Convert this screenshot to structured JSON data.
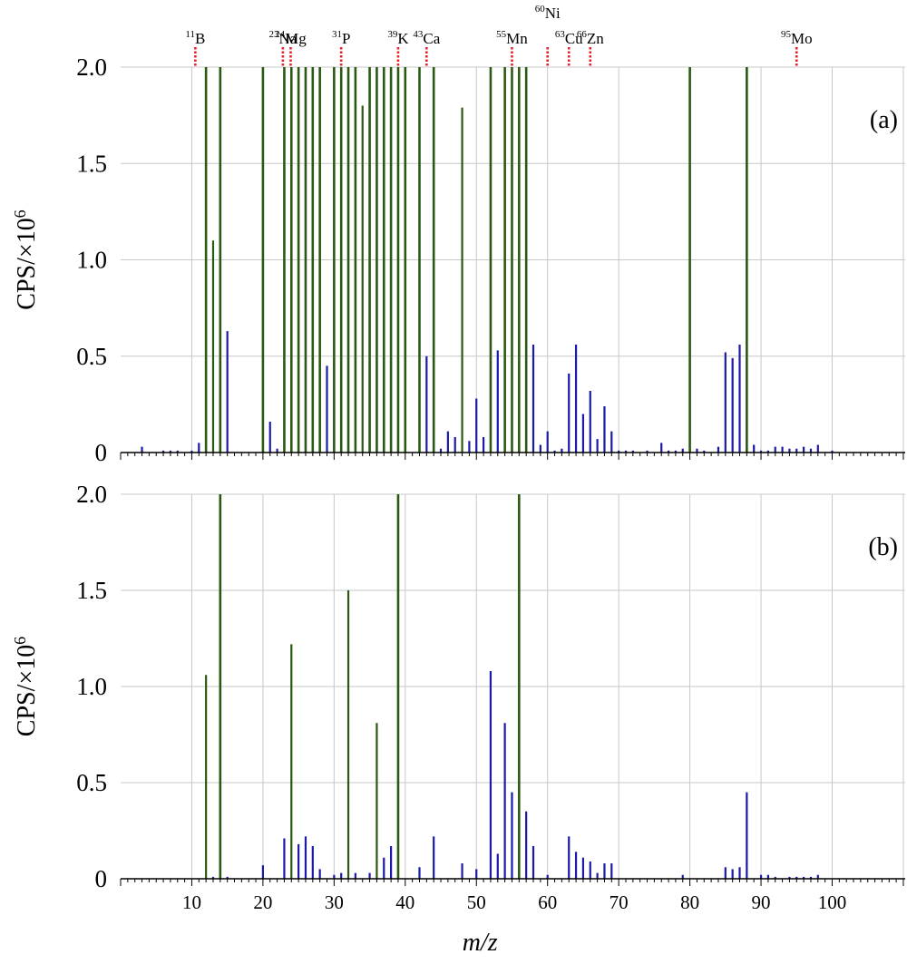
{
  "chart_data": [
    {
      "type": "bar",
      "panel_label": "(a)",
      "ylabel": "CPS/×10",
      "ylabel_sup": "6",
      "xlabel": "",
      "xlim": [
        0,
        110
      ],
      "ylim": [
        0,
        2.0
      ],
      "yticks": [
        "0",
        "0.5",
        "1.0",
        "1.5",
        "2.0"
      ],
      "grid": true,
      "element_markers": [
        {
          "mass": "11",
          "symbol": "B",
          "x": 10.5
        },
        {
          "mass": "23",
          "symbol": "Na",
          "x": 22.8
        },
        {
          "mass": "24",
          "symbol": "Mg",
          "x": 23.9
        },
        {
          "mass": "31",
          "symbol": "P",
          "x": 31.0
        },
        {
          "mass": "39",
          "symbol": "K",
          "x": 39.0
        },
        {
          "mass": "43",
          "symbol": "Ca",
          "x": 43.0
        },
        {
          "mass": "55",
          "symbol": "Mn",
          "x": 55.0
        },
        {
          "mass": "60",
          "symbol": "Ni",
          "x": 60.0
        },
        {
          "mass": "63",
          "symbol": "Cu",
          "x": 63.0
        },
        {
          "mass": "66",
          "symbol": "Zn",
          "x": 66.0
        },
        {
          "mass": "95",
          "symbol": "Mo",
          "x": 95.0
        }
      ],
      "series": [
        {
          "color": "#2a5a12",
          "points": [
            [
              12,
              2.0
            ],
            [
              13,
              1.1
            ],
            [
              14,
              2.0
            ],
            [
              20,
              2.0
            ],
            [
              23,
              2.0
            ],
            [
              24,
              2.0
            ],
            [
              25,
              2.0
            ],
            [
              26,
              2.0
            ],
            [
              27,
              2.0
            ],
            [
              28,
              2.0
            ],
            [
              30,
              2.0
            ],
            [
              31,
              2.0
            ],
            [
              32,
              2.0
            ],
            [
              33,
              2.0
            ],
            [
              34,
              1.8
            ],
            [
              35,
              2.0
            ],
            [
              36,
              2.0
            ],
            [
              37,
              2.0
            ],
            [
              38,
              2.0
            ],
            [
              39,
              2.0
            ],
            [
              40,
              2.0
            ],
            [
              42,
              2.0
            ],
            [
              44,
              2.0
            ],
            [
              48,
              1.79
            ],
            [
              52,
              2.0
            ],
            [
              54,
              2.0
            ],
            [
              55,
              2.0
            ],
            [
              56,
              2.0
            ],
            [
              57,
              2.0
            ],
            [
              80,
              2.0
            ],
            [
              88,
              2.0
            ]
          ]
        },
        {
          "color": "#1a1aa8",
          "points": [
            [
              3,
              0.03
            ],
            [
              6,
              0.01
            ],
            [
              7,
              0.01
            ],
            [
              8,
              0.01
            ],
            [
              10,
              0.01
            ],
            [
              11,
              0.05
            ],
            [
              15,
              0.63
            ],
            [
              21,
              0.16
            ],
            [
              22,
              0.02
            ],
            [
              29,
              0.45
            ],
            [
              43,
              0.5
            ],
            [
              45,
              0.02
            ],
            [
              46,
              0.11
            ],
            [
              47,
              0.08
            ],
            [
              49,
              0.06
            ],
            [
              50,
              0.28
            ],
            [
              51,
              0.08
            ],
            [
              53,
              0.53
            ],
            [
              58,
              0.56
            ],
            [
              59,
              0.04
            ],
            [
              60,
              0.11
            ],
            [
              61,
              0.01
            ],
            [
              62,
              0.02
            ],
            [
              63,
              0.41
            ],
            [
              64,
              0.56
            ],
            [
              65,
              0.2
            ],
            [
              66,
              0.32
            ],
            [
              67,
              0.07
            ],
            [
              68,
              0.24
            ],
            [
              69,
              0.11
            ],
            [
              70,
              0.01
            ],
            [
              71,
              0.01
            ],
            [
              72,
              0.01
            ],
            [
              74,
              0.01
            ],
            [
              76,
              0.05
            ],
            [
              77,
              0.01
            ],
            [
              78,
              0.01
            ],
            [
              79,
              0.02
            ],
            [
              81,
              0.02
            ],
            [
              82,
              0.01
            ],
            [
              84,
              0.03
            ],
            [
              85,
              0.52
            ],
            [
              86,
              0.49
            ],
            [
              87,
              0.56
            ],
            [
              89,
              0.04
            ],
            [
              90,
              0.01
            ],
            [
              91,
              0.01
            ],
            [
              92,
              0.03
            ],
            [
              93,
              0.03
            ],
            [
              94,
              0.02
            ],
            [
              95,
              0.02
            ],
            [
              96,
              0.03
            ],
            [
              97,
              0.02
            ],
            [
              98,
              0.04
            ],
            [
              100,
              0.01
            ]
          ]
        }
      ]
    },
    {
      "type": "bar",
      "panel_label": "(b)",
      "ylabel": "CPS/×10",
      "ylabel_sup": "6",
      "xlabel": "m/z",
      "xlim": [
        0,
        110
      ],
      "ylim": [
        0,
        2.0
      ],
      "yticks": [
        "0",
        "0.5",
        "1.0",
        "1.5",
        "2.0"
      ],
      "xticks": [
        "10",
        "20",
        "30",
        "40",
        "50",
        "60",
        "70",
        "80",
        "90",
        "100"
      ],
      "grid": true,
      "series": [
        {
          "color": "#2a5a12",
          "points": [
            [
              12,
              1.06
            ],
            [
              14,
              2.0
            ],
            [
              24,
              1.22
            ],
            [
              32,
              1.5
            ],
            [
              36,
              0.81
            ],
            [
              39,
              2.0
            ],
            [
              56,
              2.0
            ]
          ]
        },
        {
          "color": "#1a1aa8",
          "points": [
            [
              13,
              0.01
            ],
            [
              15,
              0.01
            ],
            [
              20,
              0.07
            ],
            [
              23,
              0.21
            ],
            [
              25,
              0.18
            ],
            [
              26,
              0.22
            ],
            [
              27,
              0.17
            ],
            [
              28,
              0.05
            ],
            [
              30,
              0.02
            ],
            [
              31,
              0.03
            ],
            [
              33,
              0.03
            ],
            [
              35,
              0.03
            ],
            [
              37,
              0.11
            ],
            [
              38,
              0.17
            ],
            [
              42,
              0.06
            ],
            [
              44,
              0.22
            ],
            [
              48,
              0.08
            ],
            [
              50,
              0.05
            ],
            [
              52,
              1.08
            ],
            [
              53,
              0.13
            ],
            [
              54,
              0.81
            ],
            [
              55,
              0.45
            ],
            [
              57,
              0.35
            ],
            [
              58,
              0.17
            ],
            [
              60,
              0.02
            ],
            [
              63,
              0.22
            ],
            [
              64,
              0.14
            ],
            [
              65,
              0.11
            ],
            [
              66,
              0.09
            ],
            [
              67,
              0.03
            ],
            [
              68,
              0.08
            ],
            [
              69,
              0.08
            ],
            [
              79,
              0.02
            ],
            [
              85,
              0.06
            ],
            [
              86,
              0.05
            ],
            [
              87,
              0.06
            ],
            [
              88,
              0.45
            ],
            [
              90,
              0.02
            ],
            [
              91,
              0.02
            ],
            [
              92,
              0.01
            ],
            [
              94,
              0.01
            ],
            [
              95,
              0.01
            ],
            [
              96,
              0.01
            ],
            [
              97,
              0.01
            ],
            [
              98,
              0.02
            ]
          ]
        }
      ]
    }
  ]
}
